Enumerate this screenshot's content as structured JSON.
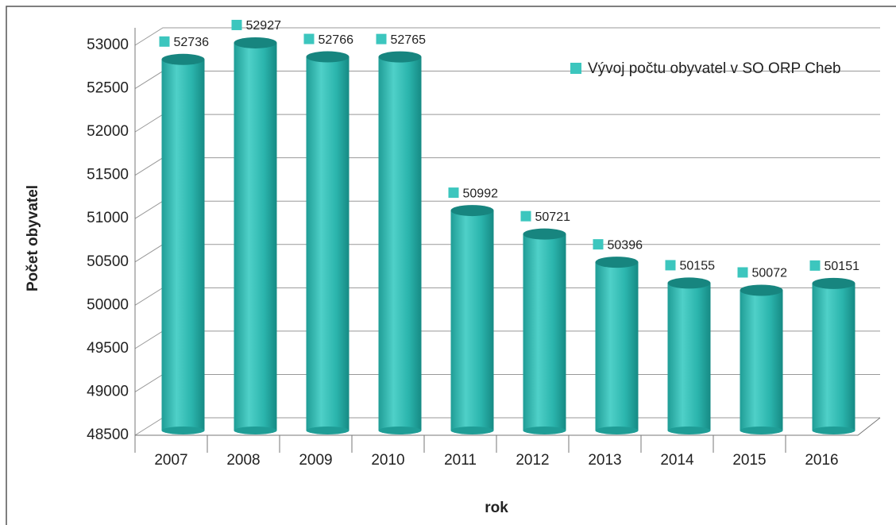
{
  "chart_data": {
    "type": "bar",
    "categories": [
      "2007",
      "2008",
      "2009",
      "2010",
      "2011",
      "2012",
      "2013",
      "2014",
      "2015",
      "2016"
    ],
    "series": [
      {
        "name": "Vývoj počtu obyvatel v SO ORP Cheb",
        "color": "#2bb5ad",
        "values": [
          52736,
          52927,
          52766,
          52765,
          50992,
          50721,
          50396,
          50155,
          50072,
          50151
        ]
      }
    ],
    "ylim": [
      48500,
      53000
    ],
    "yticks": [
      48500,
      49000,
      49500,
      50000,
      50500,
      51000,
      51500,
      52000,
      52500,
      53000
    ],
    "xlabel": "rok",
    "ylabel": "Počet obyvatel",
    "grid": true,
    "legend": "top-right"
  }
}
